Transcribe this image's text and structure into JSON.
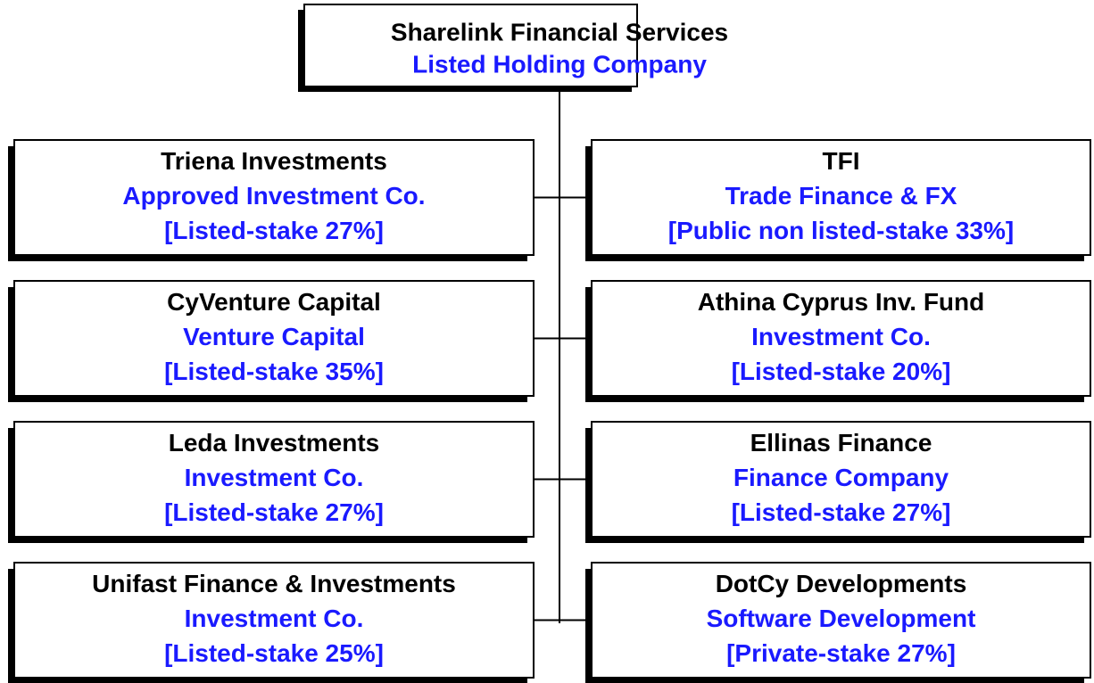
{
  "root": {
    "name": "Sharelink Financial Services",
    "type": "Listed Holding Company"
  },
  "nodes": [
    {
      "name": "Triena Investments",
      "type": "Approved Investment Co.",
      "stake": "[Listed-stake 27%]"
    },
    {
      "name": "TFI",
      "type": "Trade Finance & FX",
      "stake": "[Public non listed-stake 33%]"
    },
    {
      "name": "CyVenture Capital",
      "type": "Venture Capital",
      "stake": "[Listed-stake 35%]"
    },
    {
      "name": "Athina Cyprus Inv. Fund",
      "type": "Investment Co.",
      "stake": "[Listed-stake 20%]"
    },
    {
      "name": "Leda Investments",
      "type": "Investment Co.",
      "stake": "[Listed-stake 27%]"
    },
    {
      "name": "Ellinas Finance",
      "type": "Finance Company",
      "stake": "[Listed-stake 27%]"
    },
    {
      "name": "Unifast Finance & Investments",
      "type": "Investment Co.",
      "stake": "[Listed-stake 25%]"
    },
    {
      "name": "DotCy Developments",
      "type": "Software Development",
      "stake": "[Private-stake 27%]"
    }
  ]
}
